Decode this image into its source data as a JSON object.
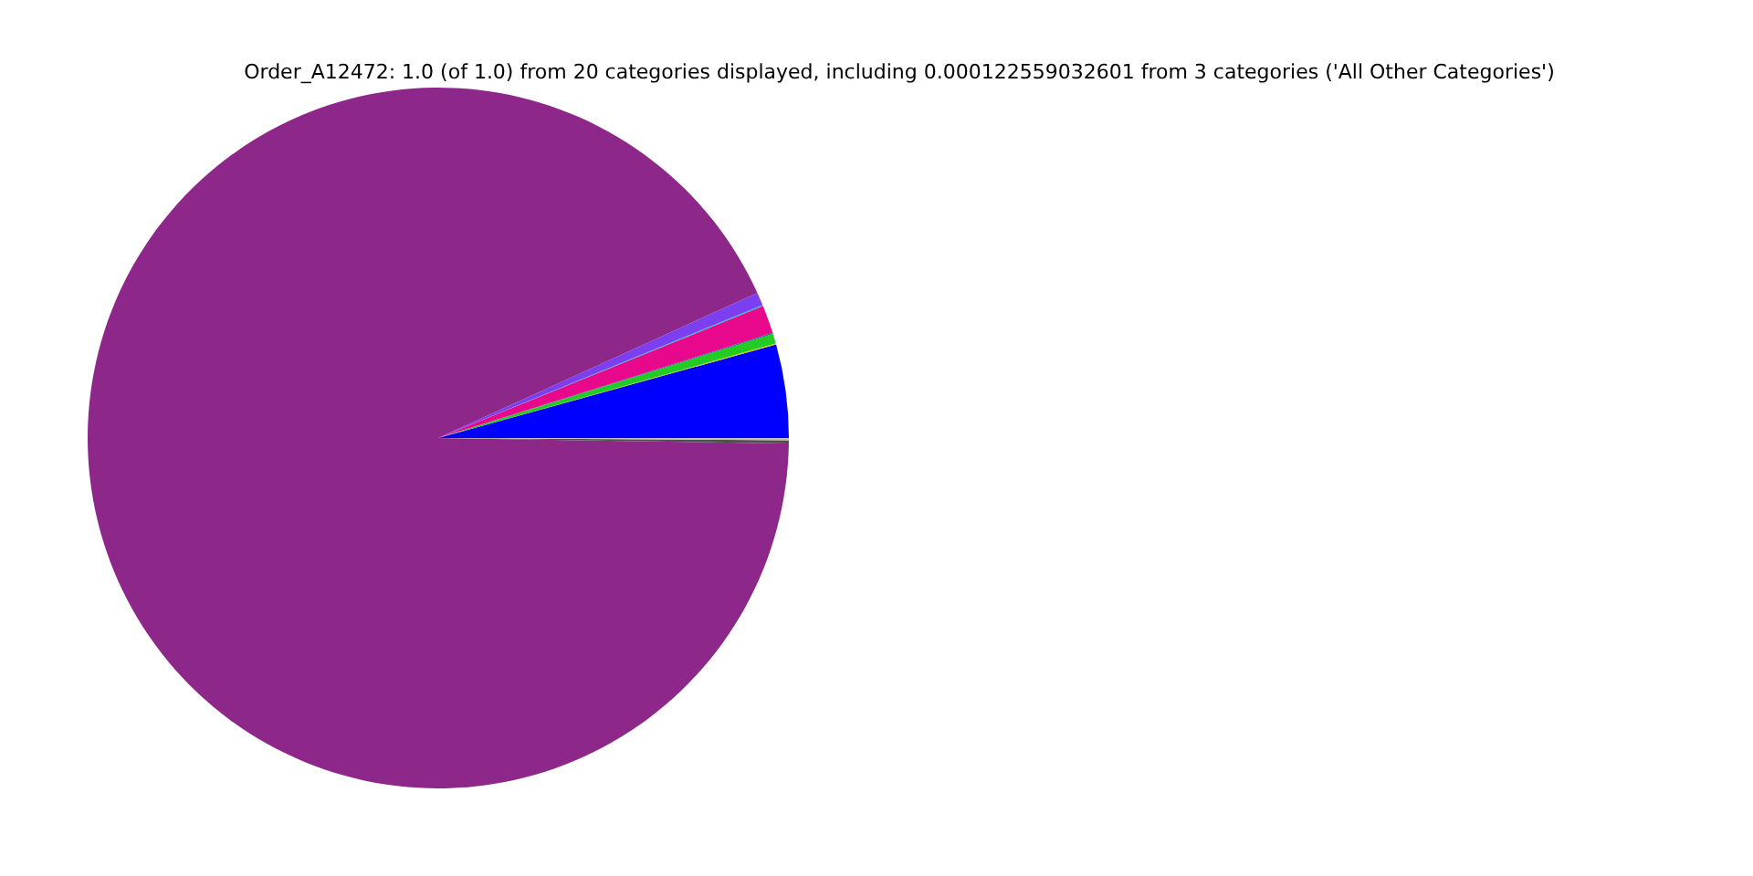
{
  "chart_data": {
    "type": "pie",
    "title": "Order_A12472: 1.0 (of 1.0) from 20 categories displayed, including 0.000122559032601 from 3 categories ('All Other Categories')",
    "categories": [
      null,
      null,
      null,
      null,
      null,
      null,
      null,
      null,
      null,
      null
    ],
    "values": [
      4.3,
      0.05,
      0.45,
      0.05,
      1.3,
      0.05,
      0.6,
      92.95,
      0.15,
      0.1
    ],
    "colors": [
      "#0000ff",
      "#c8c800",
      "#22cc22",
      "#008080",
      "#e8088c",
      "#00c8c8",
      "#7b3ff0",
      "#8e278a",
      "#505050",
      "#c0c0c0"
    ],
    "legend": false
  }
}
